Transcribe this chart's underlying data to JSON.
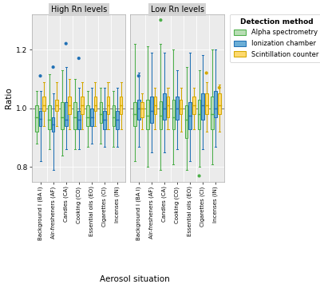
{
  "facets": [
    "High Rn levels",
    "Low Rn levels"
  ],
  "categories": [
    "Background I (BA I)",
    "Air-fresheners (AF)",
    "Candles (CA)",
    "Cooking (CO)",
    "Essential oils (EO)",
    "Cigarettes (CI)",
    "Incenses (IN)"
  ],
  "methods": [
    "Alpha spectrometry",
    "Ionization chamber",
    "Scintillation counter"
  ],
  "method_colors": [
    "#b8ddb4",
    "#6baed6",
    "#fdd96e"
  ],
  "method_edge_colors": [
    "#4daf4a",
    "#2171b5",
    "#d4a800"
  ],
  "background_color": "#ebebeb",
  "panel_facecolor": "#ebebeb",
  "plot_bg": "#ebebeb",
  "hline_color": "#808080",
  "grid_color": "#ffffff",
  "ylim": [
    0.75,
    1.32
  ],
  "yticks": [
    0.8,
    1.0,
    1.2
  ],
  "ylabel": "Ratio",
  "xlabel": "Aerosol situation",
  "legend_title": "Detection method",
  "boxes": {
    "High Rn levels": {
      "Alpha spectrometry": [
        {
          "q1": 0.92,
          "med": 0.97,
          "q3": 1.01,
          "whislo": 0.88,
          "whishi": 1.06,
          "fliers": []
        },
        {
          "q1": 0.93,
          "med": 0.96,
          "q3": 1.01,
          "whislo": 0.86,
          "whishi": 1.115,
          "fliers": []
        },
        {
          "q1": 0.93,
          "med": 0.97,
          "q3": 1.02,
          "whislo": 0.84,
          "whishi": 1.13,
          "fliers": []
        },
        {
          "q1": 0.93,
          "med": 0.97,
          "q3": 1.02,
          "whislo": 0.86,
          "whishi": 1.1,
          "fliers": []
        },
        {
          "q1": 0.94,
          "med": 0.97,
          "q3": 1.01,
          "whislo": 0.87,
          "whishi": 1.06,
          "fliers": []
        },
        {
          "q1": 0.95,
          "med": 0.98,
          "q3": 1.02,
          "whislo": 0.88,
          "whishi": 1.07,
          "fliers": []
        },
        {
          "q1": 0.94,
          "med": 0.97,
          "q3": 1.01,
          "whislo": 0.87,
          "whishi": 1.06,
          "fliers": []
        }
      ],
      "Ionization chamber": [
        {
          "q1": 0.94,
          "med": 0.965,
          "q3": 0.99,
          "whislo": 0.82,
          "whishi": 1.06,
          "fliers": [
            1.11
          ]
        },
        {
          "q1": 0.92,
          "med": 0.945,
          "q3": 0.97,
          "whislo": 0.79,
          "whishi": 1.05,
          "fliers": [
            1.14
          ]
        },
        {
          "q1": 0.94,
          "med": 0.96,
          "q3": 1.02,
          "whislo": 0.86,
          "whishi": 1.14,
          "fliers": [
            1.22
          ]
        },
        {
          "q1": 0.93,
          "med": 0.96,
          "q3": 0.99,
          "whislo": 0.86,
          "whishi": 1.07,
          "fliers": [
            1.17
          ]
        },
        {
          "q1": 0.94,
          "med": 0.97,
          "q3": 1.0,
          "whislo": 0.88,
          "whishi": 1.07,
          "fliers": []
        },
        {
          "q1": 0.93,
          "med": 0.96,
          "q3": 0.99,
          "whislo": 0.87,
          "whishi": 1.07,
          "fliers": []
        },
        {
          "q1": 0.93,
          "med": 0.96,
          "q3": 0.99,
          "whislo": 0.87,
          "whishi": 1.07,
          "fliers": []
        }
      ],
      "Scintillation counter": [
        {
          "q1": 0.99,
          "med": 1.01,
          "q3": 1.04,
          "whislo": 0.94,
          "whishi": 1.09,
          "fliers": []
        },
        {
          "q1": 0.99,
          "med": 1.01,
          "q3": 1.03,
          "whislo": 0.94,
          "whishi": 1.09,
          "fliers": []
        },
        {
          "q1": 0.98,
          "med": 1.01,
          "q3": 1.04,
          "whislo": 0.93,
          "whishi": 1.1,
          "fliers": []
        },
        {
          "q1": 0.98,
          "med": 1.01,
          "q3": 1.04,
          "whislo": 0.93,
          "whishi": 1.09,
          "fliers": []
        },
        {
          "q1": 0.99,
          "med": 1.01,
          "q3": 1.04,
          "whislo": 0.94,
          "whishi": 1.09,
          "fliers": []
        },
        {
          "q1": 0.98,
          "med": 1.01,
          "q3": 1.04,
          "whislo": 0.93,
          "whishi": 1.09,
          "fliers": []
        },
        {
          "q1": 0.98,
          "med": 1.01,
          "q3": 1.04,
          "whislo": 0.93,
          "whishi": 1.09,
          "fliers": []
        }
      ]
    },
    "Low Rn levels": {
      "Alpha spectrometry": [
        {
          "q1": 0.94,
          "med": 0.98,
          "q3": 1.02,
          "whislo": 0.82,
          "whishi": 1.22,
          "fliers": []
        },
        {
          "q1": 0.93,
          "med": 0.975,
          "q3": 1.03,
          "whislo": 0.8,
          "whishi": 1.21,
          "fliers": []
        },
        {
          "q1": 0.93,
          "med": 0.975,
          "q3": 1.025,
          "whislo": 0.79,
          "whishi": 1.22,
          "fliers": [
            1.3
          ]
        },
        {
          "q1": 0.93,
          "med": 0.97,
          "q3": 1.03,
          "whislo": 0.81,
          "whishi": 1.2,
          "fliers": []
        },
        {
          "q1": 0.9,
          "med": 0.96,
          "q3": 1.01,
          "whislo": 0.79,
          "whishi": 1.14,
          "fliers": []
        },
        {
          "q1": 0.93,
          "med": 0.98,
          "q3": 1.03,
          "whislo": 0.8,
          "whishi": 1.13,
          "fliers": [
            0.77
          ]
        },
        {
          "q1": 0.93,
          "med": 0.98,
          "q3": 1.04,
          "whislo": 0.81,
          "whishi": 1.2,
          "fliers": []
        }
      ],
      "Ionization chamber": [
        {
          "q1": 0.96,
          "med": 1.0,
          "q3": 1.03,
          "whislo": 0.87,
          "whishi": 1.12,
          "fliers": [
            1.11
          ]
        },
        {
          "q1": 0.95,
          "med": 0.99,
          "q3": 1.04,
          "whislo": 0.85,
          "whishi": 1.19,
          "fliers": []
        },
        {
          "q1": 0.96,
          "med": 1.0,
          "q3": 1.05,
          "whislo": 0.85,
          "whishi": 1.19,
          "fliers": []
        },
        {
          "q1": 0.96,
          "med": 1.0,
          "q3": 1.04,
          "whislo": 0.86,
          "whishi": 1.13,
          "fliers": []
        },
        {
          "q1": 0.93,
          "med": 0.975,
          "q3": 1.02,
          "whislo": 0.82,
          "whishi": 1.19,
          "fliers": []
        },
        {
          "q1": 0.96,
          "med": 1.01,
          "q3": 1.05,
          "whislo": 0.86,
          "whishi": 1.18,
          "fliers": []
        },
        {
          "q1": 0.97,
          "med": 1.0,
          "q3": 1.06,
          "whislo": 0.87,
          "whishi": 1.2,
          "fliers": []
        }
      ],
      "Scintillation counter": [
        {
          "q1": 0.97,
          "med": 1.0,
          "q3": 1.02,
          "whislo": 0.93,
          "whishi": 1.05,
          "fliers": []
        },
        {
          "q1": 0.98,
          "med": 1.01,
          "q3": 1.04,
          "whislo": 0.93,
          "whishi": 1.07,
          "fliers": []
        },
        {
          "q1": 0.97,
          "med": 1.01,
          "q3": 1.04,
          "whislo": 0.93,
          "whishi": 1.07,
          "fliers": []
        },
        {
          "q1": 0.98,
          "med": 1.0,
          "q3": 1.03,
          "whislo": 0.92,
          "whishi": 1.07,
          "fliers": []
        },
        {
          "q1": 0.98,
          "med": 1.01,
          "q3": 1.04,
          "whislo": 0.93,
          "whishi": 1.07,
          "fliers": []
        },
        {
          "q1": 0.98,
          "med": 1.01,
          "q3": 1.05,
          "whislo": 0.92,
          "whishi": 1.09,
          "fliers": [
            1.12
          ]
        },
        {
          "q1": 0.98,
          "med": 1.01,
          "q3": 1.05,
          "whislo": 0.92,
          "whishi": 1.08,
          "fliers": [
            1.07
          ]
        }
      ]
    }
  }
}
